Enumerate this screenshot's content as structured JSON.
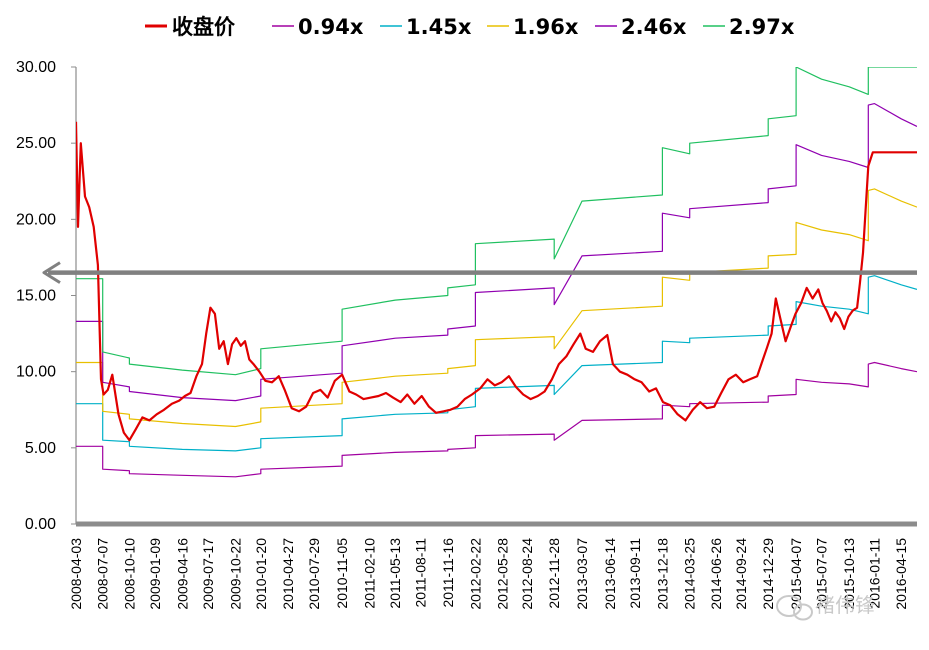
{
  "chart_data": {
    "type": "line",
    "ylim": [
      0,
      30
    ],
    "yticks": [
      "0.00",
      "5.00",
      "10.00",
      "15.00",
      "20.00",
      "25.00",
      "30.00"
    ],
    "xtick_labels": [
      "2008-04-03",
      "2008-07-07",
      "2008-10-10",
      "2009-01-09",
      "2009-04-16",
      "2009-07-17",
      "2009-10-22",
      "2010-01-20",
      "2010-04-27",
      "2010-07-29",
      "2010-11-05",
      "2011-02-10",
      "2011-05-13",
      "2011-08-11",
      "2011-11-16",
      "2012-02-22",
      "2012-05-28",
      "2012-08-24",
      "2012-11-28",
      "2013-03-07",
      "2013-06-14",
      "2013-09-11",
      "2013-12-18",
      "2014-03-25",
      "2014-06-26",
      "2014-09-24",
      "2014-12-29",
      "2015-04-07",
      "2015-07-07",
      "2015-10-13",
      "2016-01-11",
      "2016-04-15"
    ],
    "xrange": [
      "2008-04-03",
      "2016-06-10"
    ],
    "reference_line": {
      "y": 16.5,
      "color": "#808080",
      "style": "arrow-left"
    },
    "series": [
      {
        "name": "收盘价",
        "color": "#e00000",
        "x": [
          "2008-04-03",
          "2008-04-10",
          "2008-04-20",
          "2008-05-05",
          "2008-05-20",
          "2008-06-05",
          "2008-06-20",
          "2008-07-01",
          "2008-07-10",
          "2008-07-25",
          "2008-08-10",
          "2008-09-01",
          "2008-09-20",
          "2008-10-10",
          "2008-11-01",
          "2008-11-25",
          "2008-12-20",
          "2009-01-15",
          "2009-02-10",
          "2009-03-10",
          "2009-04-05",
          "2009-04-25",
          "2009-05-15",
          "2009-06-05",
          "2009-06-25",
          "2009-07-10",
          "2009-07-25",
          "2009-08-10",
          "2009-08-25",
          "2009-09-10",
          "2009-09-25",
          "2009-10-10",
          "2009-10-25",
          "2009-11-10",
          "2009-11-25",
          "2009-12-10",
          "2009-12-25",
          "2010-01-15",
          "2010-02-05",
          "2010-03-01",
          "2010-03-25",
          "2010-04-15",
          "2010-05-10",
          "2010-06-05",
          "2010-06-30",
          "2010-07-25",
          "2010-08-20",
          "2010-09-15",
          "2010-10-10",
          "2010-11-05",
          "2010-12-01",
          "2010-12-25",
          "2011-01-20",
          "2011-02-15",
          "2011-03-15",
          "2011-04-10",
          "2011-05-05",
          "2011-06-01",
          "2011-06-25",
          "2011-07-20",
          "2011-08-15",
          "2011-09-10",
          "2011-10-05",
          "2011-11-01",
          "2011-11-25",
          "2011-12-20",
          "2012-01-15",
          "2012-02-10",
          "2012-03-10",
          "2012-04-05",
          "2012-05-01",
          "2012-05-25",
          "2012-06-20",
          "2012-07-15",
          "2012-08-10",
          "2012-09-05",
          "2012-10-01",
          "2012-10-25",
          "2012-11-20",
          "2012-12-15",
          "2013-01-10",
          "2013-02-05",
          "2013-03-01",
          "2013-03-20",
          "2013-04-15",
          "2013-05-10",
          "2013-06-05",
          "2013-06-25",
          "2013-07-20",
          "2013-08-15",
          "2013-09-10",
          "2013-10-05",
          "2013-11-01",
          "2013-11-25",
          "2013-12-20",
          "2014-01-15",
          "2014-02-10",
          "2014-03-10",
          "2014-04-05",
          "2014-05-01",
          "2014-05-25",
          "2014-06-20",
          "2014-07-15",
          "2014-08-10",
          "2014-09-05",
          "2014-10-01",
          "2014-10-25",
          "2014-11-20",
          "2014-12-10",
          "2014-12-25",
          "2015-01-10",
          "2015-01-25",
          "2015-02-10",
          "2015-03-01",
          "2015-03-20",
          "2015-04-05",
          "2015-04-25",
          "2015-05-15",
          "2015-06-05",
          "2015-06-25",
          "2015-07-10",
          "2015-07-25",
          "2015-08-10",
          "2015-08-25",
          "2015-09-10",
          "2015-09-25",
          "2015-10-10",
          "2015-10-25",
          "2015-11-10",
          "2015-11-20",
          "2015-12-01",
          "2015-12-10",
          "2015-12-20",
          "2016-01-05",
          "2016-02-15",
          "2016-04-01",
          "2016-05-15",
          "2016-06-10"
        ],
        "values": [
          26.4,
          19.5,
          25.0,
          21.5,
          20.8,
          19.5,
          17.0,
          9.5,
          8.5,
          8.8,
          9.8,
          7.2,
          6.0,
          5.5,
          6.2,
          7.0,
          6.8,
          7.2,
          7.5,
          7.9,
          8.1,
          8.4,
          8.6,
          9.7,
          10.5,
          12.5,
          14.2,
          13.8,
          11.5,
          12.0,
          10.5,
          11.8,
          12.2,
          11.7,
          12.0,
          10.8,
          10.5,
          10.0,
          9.4,
          9.3,
          9.7,
          8.8,
          7.6,
          7.4,
          7.7,
          8.6,
          8.8,
          8.3,
          9.4,
          9.8,
          8.7,
          8.5,
          8.2,
          8.3,
          8.4,
          8.6,
          8.3,
          8.0,
          8.5,
          7.9,
          8.4,
          7.7,
          7.3,
          7.4,
          7.5,
          7.7,
          8.2,
          8.5,
          8.9,
          9.5,
          9.1,
          9.3,
          9.7,
          9.0,
          8.5,
          8.2,
          8.4,
          8.7,
          9.5,
          10.5,
          11.0,
          11.8,
          12.5,
          11.5,
          11.3,
          12.0,
          12.4,
          10.5,
          10.0,
          9.8,
          9.5,
          9.3,
          8.7,
          8.9,
          8.0,
          7.8,
          7.2,
          6.8,
          7.5,
          8.0,
          7.6,
          7.7,
          8.6,
          9.5,
          9.8,
          9.3,
          9.5,
          9.7,
          10.8,
          11.6,
          12.5,
          14.8,
          13.5,
          12.0,
          13.0,
          13.8,
          14.5,
          15.5,
          14.8,
          15.4,
          14.5,
          14.0,
          13.3,
          13.9,
          13.5,
          12.8,
          13.6,
          14.0,
          14.2,
          15.8,
          17.8,
          20.5,
          23.5,
          24.4,
          24.4,
          24.4,
          24.4,
          24.4
        ]
      },
      {
        "name": "0.94x",
        "color": "#a000a0",
        "x": [
          "2008-04-03",
          "2008-07-07",
          "2008-07-07",
          "2008-10-10",
          "2008-10-10",
          "2009-04-16",
          "2009-10-22",
          "2010-01-20",
          "2010-01-20",
          "2010-11-05",
          "2010-11-05",
          "2011-05-13",
          "2011-11-16",
          "2011-11-16",
          "2012-02-22",
          "2012-02-22",
          "2012-11-28",
          "2012-11-28",
          "2013-03-07",
          "2013-12-18",
          "2013-12-18",
          "2014-03-25",
          "2014-03-25",
          "2014-12-29",
          "2014-12-29",
          "2015-04-07",
          "2015-04-07",
          "2015-07-07",
          "2015-10-13",
          "2015-12-20",
          "2015-12-20",
          "2016-01-11",
          "2016-04-15",
          "2016-06-10"
        ],
        "values": [
          5.1,
          5.1,
          3.6,
          3.5,
          3.3,
          3.2,
          3.1,
          3.3,
          3.6,
          3.8,
          4.5,
          4.7,
          4.8,
          4.9,
          5.0,
          5.8,
          5.9,
          5.5,
          6.8,
          6.9,
          7.8,
          7.7,
          7.9,
          8.0,
          8.4,
          8.5,
          9.5,
          9.3,
          9.2,
          9.0,
          10.5,
          10.6,
          10.2,
          10.0
        ]
      },
      {
        "name": "1.45x",
        "color": "#00b0c8",
        "x": [
          "2008-04-03",
          "2008-07-07",
          "2008-07-07",
          "2008-10-10",
          "2008-10-10",
          "2009-04-16",
          "2009-10-22",
          "2010-01-20",
          "2010-01-20",
          "2010-11-05",
          "2010-11-05",
          "2011-05-13",
          "2011-11-16",
          "2011-11-16",
          "2012-02-22",
          "2012-02-22",
          "2012-11-28",
          "2012-11-28",
          "2013-03-07",
          "2013-12-18",
          "2013-12-18",
          "2014-03-25",
          "2014-03-25",
          "2014-12-29",
          "2014-12-29",
          "2015-04-07",
          "2015-04-07",
          "2015-07-07",
          "2015-10-13",
          "2015-12-20",
          "2015-12-20",
          "2016-01-11",
          "2016-04-15",
          "2016-06-10"
        ],
        "values": [
          7.9,
          7.9,
          5.5,
          5.4,
          5.1,
          4.9,
          4.8,
          5.0,
          5.6,
          5.8,
          6.9,
          7.2,
          7.3,
          7.5,
          7.7,
          8.9,
          9.1,
          8.5,
          10.4,
          10.6,
          12.0,
          11.9,
          12.2,
          12.4,
          13.0,
          13.1,
          14.6,
          14.3,
          14.1,
          13.8,
          16.2,
          16.3,
          15.7,
          15.4
        ]
      },
      {
        "name": "1.96x",
        "color": "#e8c000",
        "x": [
          "2008-04-03",
          "2008-07-07",
          "2008-07-07",
          "2008-10-10",
          "2008-10-10",
          "2009-04-16",
          "2009-10-22",
          "2010-01-20",
          "2010-01-20",
          "2010-11-05",
          "2010-11-05",
          "2011-05-13",
          "2011-11-16",
          "2011-11-16",
          "2012-02-22",
          "2012-02-22",
          "2012-11-28",
          "2012-11-28",
          "2013-03-07",
          "2013-12-18",
          "2013-12-18",
          "2014-03-25",
          "2014-03-25",
          "2014-12-29",
          "2014-12-29",
          "2015-04-07",
          "2015-04-07",
          "2015-07-07",
          "2015-10-13",
          "2015-12-20",
          "2015-12-20",
          "2016-01-11",
          "2016-04-15",
          "2016-06-10"
        ],
        "values": [
          10.6,
          10.6,
          7.4,
          7.2,
          6.9,
          6.6,
          6.4,
          6.7,
          7.6,
          7.9,
          9.3,
          9.7,
          9.9,
          10.2,
          10.4,
          12.1,
          12.3,
          11.5,
          14.0,
          14.3,
          16.2,
          16.0,
          16.5,
          16.8,
          17.6,
          17.7,
          19.8,
          19.3,
          19.0,
          18.6,
          21.9,
          22.0,
          21.2,
          20.8
        ]
      },
      {
        "name": "2.46x",
        "color": "#9000b0",
        "x": [
          "2008-04-03",
          "2008-07-07",
          "2008-07-07",
          "2008-10-10",
          "2008-10-10",
          "2009-04-16",
          "2009-10-22",
          "2010-01-20",
          "2010-01-20",
          "2010-11-05",
          "2010-11-05",
          "2011-05-13",
          "2011-11-16",
          "2011-11-16",
          "2012-02-22",
          "2012-02-22",
          "2012-11-28",
          "2012-11-28",
          "2013-03-07",
          "2013-12-18",
          "2013-12-18",
          "2014-03-25",
          "2014-03-25",
          "2014-12-29",
          "2014-12-29",
          "2015-04-07",
          "2015-04-07",
          "2015-07-07",
          "2015-10-13",
          "2015-12-20",
          "2015-12-20",
          "2016-01-11",
          "2016-04-15",
          "2016-06-10"
        ],
        "values": [
          13.3,
          13.3,
          9.3,
          9.0,
          8.7,
          8.3,
          8.1,
          8.4,
          9.5,
          9.9,
          11.7,
          12.2,
          12.4,
          12.8,
          13.0,
          15.2,
          15.5,
          14.4,
          17.6,
          17.9,
          20.4,
          20.1,
          20.7,
          21.1,
          22.0,
          22.2,
          24.9,
          24.2,
          23.8,
          23.4,
          27.5,
          27.6,
          26.6,
          26.1
        ]
      },
      {
        "name": "2.97x",
        "color": "#20c060",
        "x": [
          "2008-04-03",
          "2008-07-07",
          "2008-07-07",
          "2008-10-10",
          "2008-10-10",
          "2009-04-16",
          "2009-10-22",
          "2010-01-20",
          "2010-01-20",
          "2010-11-05",
          "2010-11-05",
          "2011-05-13",
          "2011-11-16",
          "2011-11-16",
          "2012-02-22",
          "2012-02-22",
          "2012-11-28",
          "2012-11-28",
          "2013-03-07",
          "2013-12-18",
          "2013-12-18",
          "2014-03-25",
          "2014-03-25",
          "2014-12-29",
          "2014-12-29",
          "2015-04-07",
          "2015-04-07",
          "2015-07-07",
          "2015-10-13",
          "2015-12-20",
          "2015-12-20",
          "2016-01-11",
          "2016-04-15",
          "2016-06-10"
        ],
        "values": [
          16.1,
          16.1,
          11.3,
          10.9,
          10.5,
          10.1,
          9.8,
          10.2,
          11.5,
          12.0,
          14.1,
          14.7,
          15.0,
          15.5,
          15.7,
          18.4,
          18.7,
          17.4,
          21.2,
          21.6,
          24.7,
          24.3,
          25.0,
          25.5,
          26.6,
          26.8,
          30.0,
          29.2,
          28.7,
          28.2,
          30.0,
          30.0,
          30.0,
          30.0
        ]
      }
    ]
  },
  "watermark": {
    "text": "褚伟锋",
    "icon": "chat-bubble-icon"
  }
}
